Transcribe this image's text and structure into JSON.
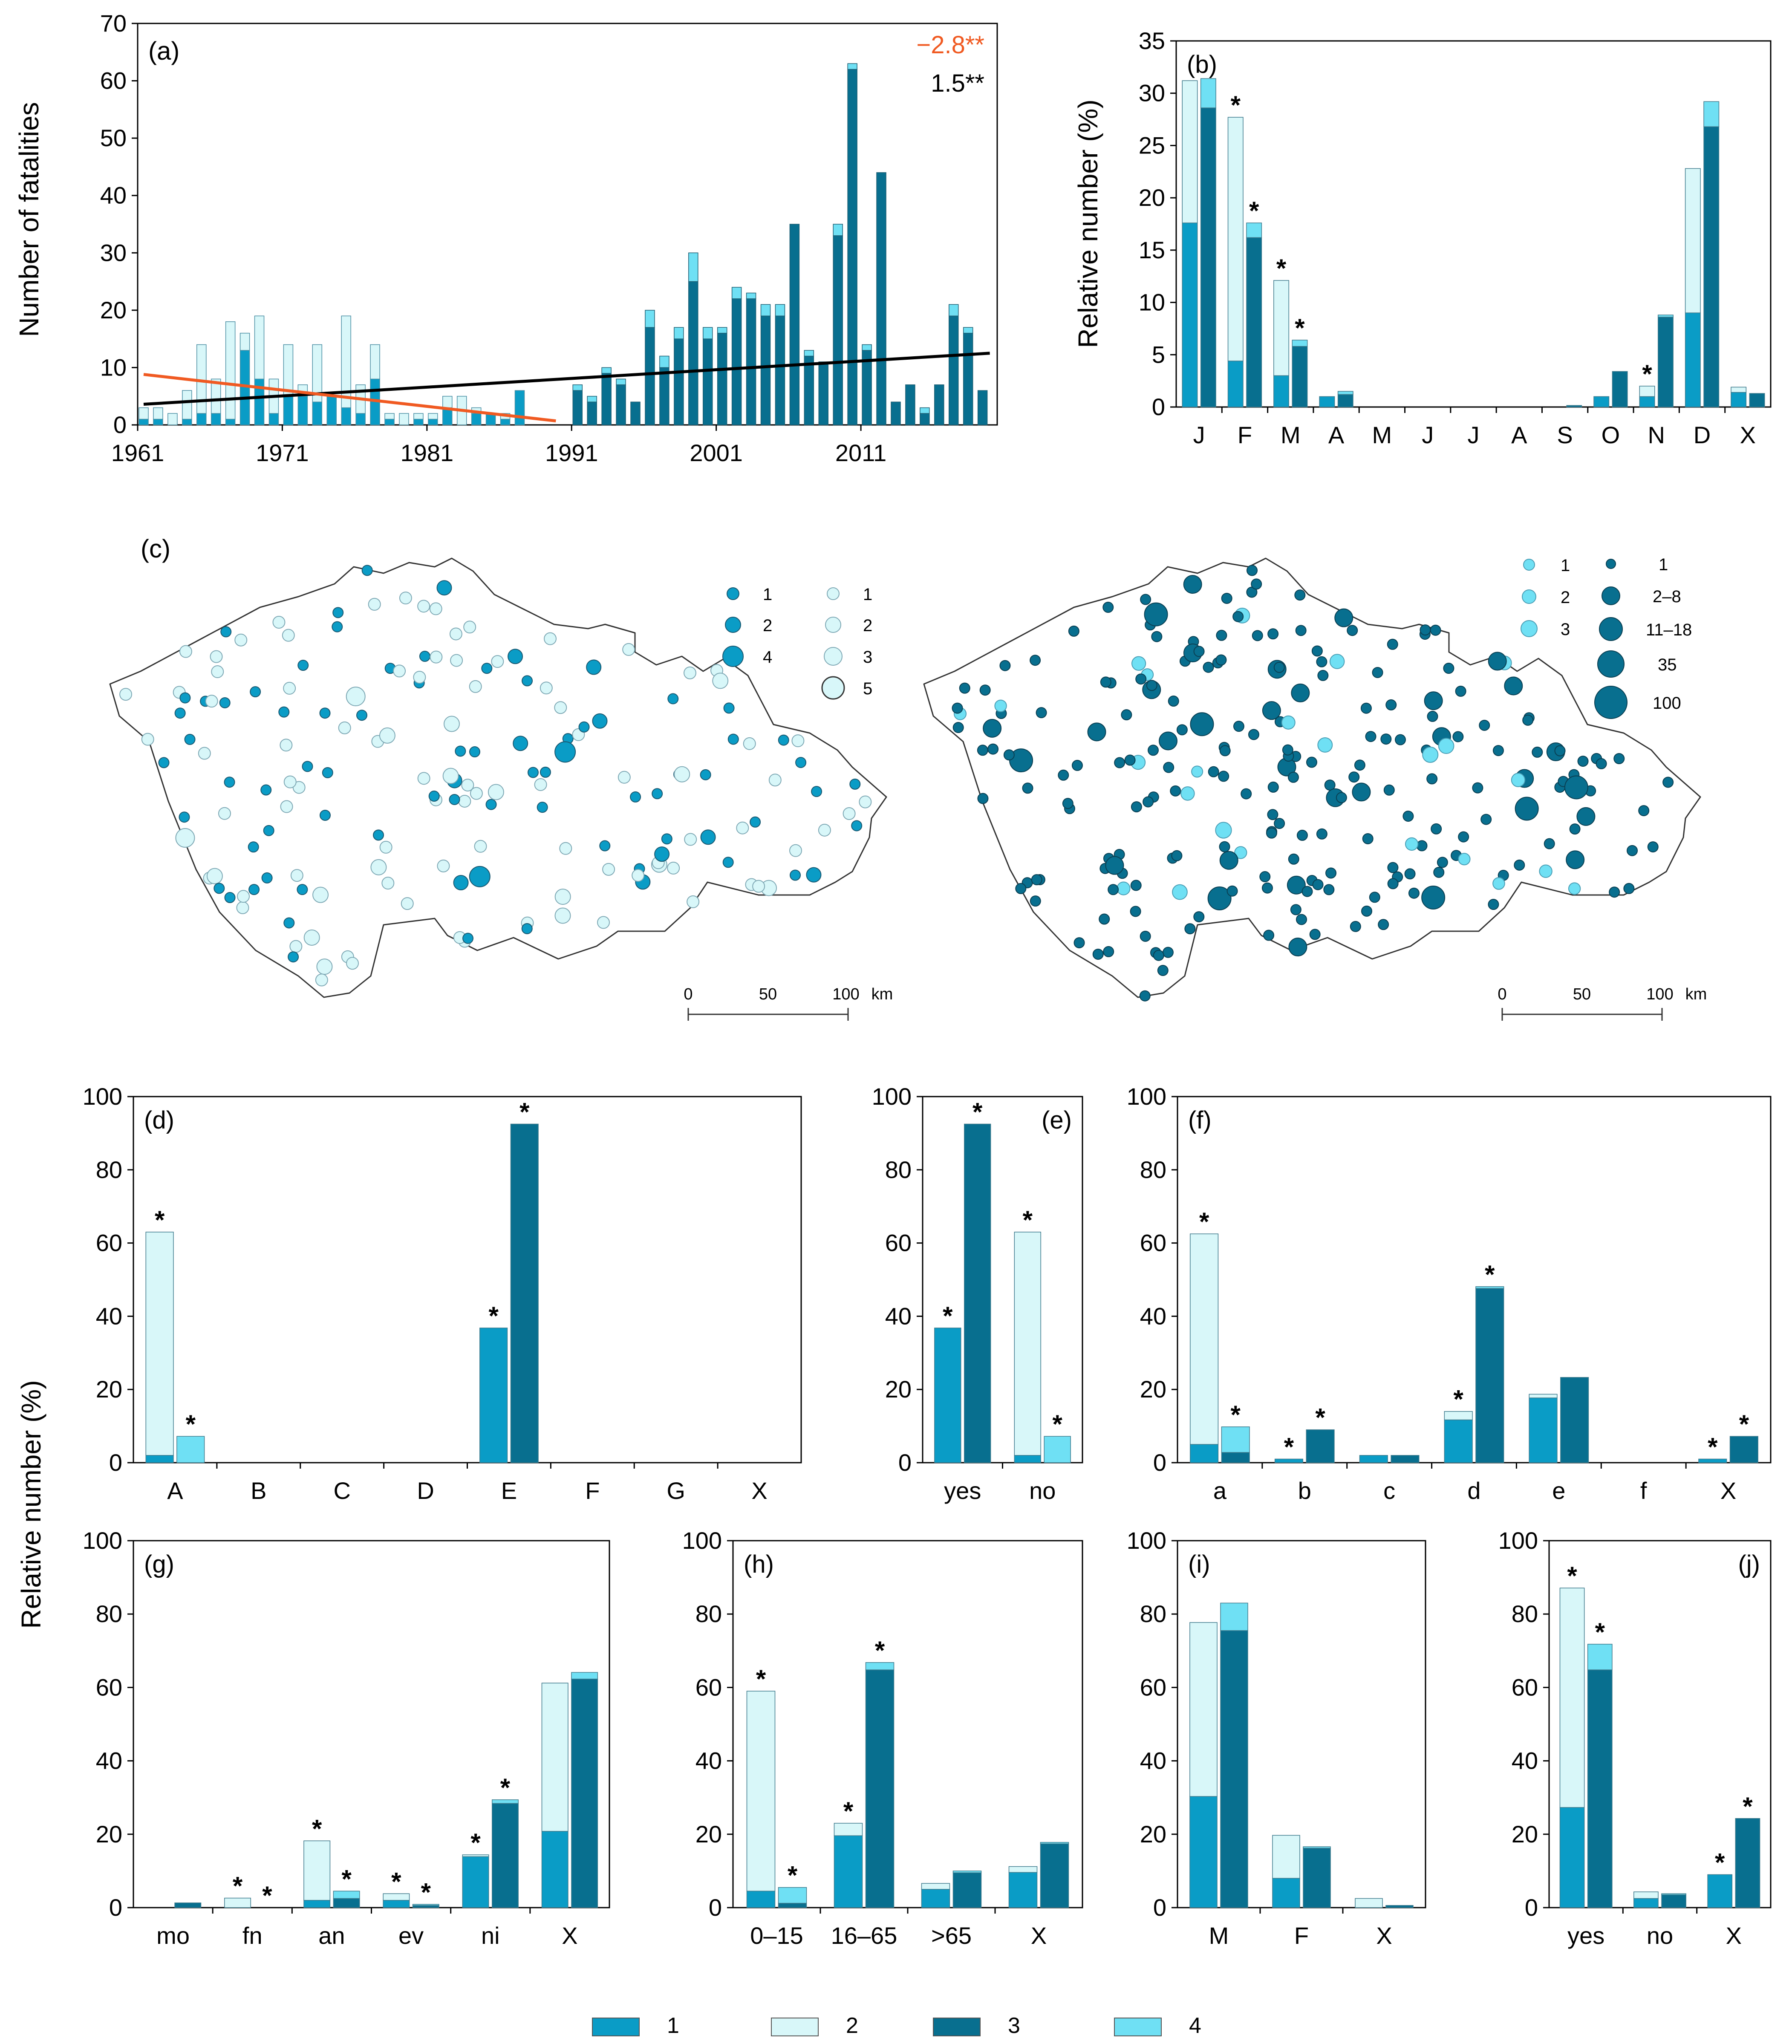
{
  "colors": {
    "c1": "#0a9cc6",
    "c2": "#d8f7f9",
    "c3": "#086f8f",
    "c4": "#6fe0f4",
    "trend_neg": "#f05a22",
    "trend_pos": "#000000",
    "axis": "#000000"
  },
  "y_axis_label_top": "Number of fatalities",
  "y_axis_label_b": "Relative number (%)",
  "y_axis_label_bottom": "Relative number (%)",
  "legend": [
    {
      "key": "c1",
      "label": "1"
    },
    {
      "key": "c2",
      "label": "2"
    },
    {
      "key": "c3",
      "label": "3"
    },
    {
      "key": "c4",
      "label": "4"
    }
  ],
  "maps": {
    "label": "(c)",
    "left_legend": {
      "dark": [
        "1",
        "2",
        "4"
      ],
      "light": [
        "1",
        "2",
        "3",
        "5"
      ]
    },
    "right_legend": {
      "light": [
        "1",
        "2",
        "3"
      ],
      "dark": [
        "1",
        "2–8",
        "11–18",
        "35",
        "100"
      ]
    },
    "scale": {
      "ticks": [
        "0",
        "50",
        "100"
      ],
      "unit": "km"
    }
  },
  "chart_data": [
    {
      "id": "a",
      "type": "bar",
      "stacked": true,
      "title": "(a)",
      "ylabel": "Number of fatalities",
      "ylim": [
        0,
        70
      ],
      "yticks": [
        "0",
        "10",
        "20",
        "30",
        "40",
        "50",
        "60",
        "70"
      ],
      "xticks": [
        "1961",
        "1971",
        "1981",
        "1991",
        "2001",
        "2011"
      ],
      "annotations": [
        {
          "text": "−2.8**",
          "color": "#f05a22"
        },
        {
          "text": "1.5**",
          "color": "#000000"
        }
      ],
      "years": [
        1961,
        1962,
        1963,
        1964,
        1965,
        1966,
        1967,
        1968,
        1969,
        1970,
        1971,
        1972,
        1973,
        1974,
        1975,
        1976,
        1977,
        1978,
        1979,
        1980,
        1981,
        1982,
        1983,
        1984,
        1985,
        1986,
        1987,
        1988,
        1989,
        1990,
        1991,
        1992,
        1993,
        1994,
        1995,
        1996,
        1997,
        1998,
        1999,
        2000,
        2001,
        2002,
        2003,
        2004,
        2005,
        2006,
        2007,
        2008,
        2009,
        2010,
        2011,
        2012,
        2013,
        2014,
        2015,
        2016,
        2017,
        2018,
        2019
      ],
      "period1_years": [
        1961,
        1962,
        1963,
        1964,
        1965,
        1966,
        1967,
        1968,
        1969,
        1970,
        1971,
        1972,
        1973,
        1974,
        1975,
        1976,
        1977,
        1978,
        1979,
        1980,
        1981,
        1982,
        1983,
        1984,
        1985,
        1986,
        1987,
        1988,
        1989,
        1990
      ],
      "period1_c1": [
        1,
        1,
        0,
        1,
        2,
        2,
        1,
        13,
        8,
        2,
        5,
        5,
        4,
        5,
        3,
        2,
        8,
        1,
        0,
        1,
        1,
        3,
        0,
        2,
        2,
        1,
        6,
        0,
        0,
        0
      ],
      "period1_c2": [
        2,
        2,
        2,
        5,
        12,
        6,
        17,
        3,
        11,
        6,
        9,
        2,
        10,
        0,
        16,
        5,
        6,
        1,
        2,
        1,
        1,
        2,
        5,
        1,
        0,
        1,
        0,
        0,
        0,
        0
      ],
      "period2_years": [
        1991,
        1992,
        1993,
        1994,
        1995,
        1996,
        1997,
        1998,
        1999,
        2000,
        2001,
        2002,
        2003,
        2004,
        2005,
        2006,
        2007,
        2008,
        2009,
        2010,
        2011,
        2012,
        2013,
        2014,
        2015,
        2016,
        2017,
        2018,
        2019
      ],
      "period2_c3": [
        6,
        4,
        9,
        7,
        4,
        17,
        10,
        15,
        25,
        15,
        16,
        22,
        22,
        19,
        19,
        35,
        12,
        11,
        33,
        62,
        13,
        44,
        4,
        7,
        2,
        7,
        19,
        16,
        6
      ],
      "period2_c4": [
        1,
        1,
        1,
        1,
        0,
        3,
        2,
        2,
        5,
        2,
        1,
        2,
        1,
        2,
        2,
        0,
        1,
        0,
        2,
        1,
        1,
        0,
        0,
        0,
        1,
        0,
        2,
        1,
        0
      ],
      "trend_neg": {
        "from": [
          1961,
          8.8
        ],
        "to": [
          1989.5,
          0.7
        ]
      },
      "trend_pos": {
        "from": [
          1961,
          3.6
        ],
        "to": [
          2019.5,
          12.5
        ]
      }
    },
    {
      "id": "b",
      "type": "bar",
      "stacked": true,
      "title": "(b)",
      "ylabel": "Relative number (%)",
      "ylim": [
        0,
        35
      ],
      "yticks": [
        "0",
        "5",
        "10",
        "15",
        "20",
        "25",
        "30",
        "35"
      ],
      "categories": [
        "J",
        "F",
        "M",
        "A",
        "M",
        "J",
        "J",
        "A",
        "S",
        "O",
        "N",
        "D",
        "X"
      ],
      "pairs": [
        {
          "A": [
            17.6,
            13.6,
            0
          ],
          "B": [
            28.6,
            2.8,
            1
          ],
          "starA": false,
          "starB": false
        },
        {
          "A": [
            4.4,
            23.3,
            0
          ],
          "B": [
            16.2,
            1.4,
            1
          ],
          "starA": true,
          "starB": true
        },
        {
          "A": [
            3.0,
            9.1,
            0
          ],
          "B": [
            5.8,
            0.6,
            1
          ],
          "starA": true,
          "starB": true
        },
        {
          "A": [
            1.0,
            0,
            0
          ],
          "B": [
            1.2,
            0.3,
            1
          ],
          "starA": false,
          "starB": false
        },
        {
          "A": [
            0,
            0,
            0
          ],
          "B": [
            0,
            0,
            1
          ],
          "starA": false,
          "starB": false
        },
        {
          "A": [
            0,
            0,
            0
          ],
          "B": [
            0,
            0,
            1
          ],
          "starA": false,
          "starB": false
        },
        {
          "A": [
            0,
            0,
            0
          ],
          "B": [
            0,
            0,
            1
          ],
          "starA": false,
          "starB": false
        },
        {
          "A": [
            0,
            0,
            0
          ],
          "B": [
            0,
            0,
            1
          ],
          "starA": false,
          "starB": false
        },
        {
          "A": [
            0,
            0,
            0
          ],
          "B": [
            0.15,
            0,
            1
          ],
          "starA": false,
          "starB": false
        },
        {
          "A": [
            1.0,
            0,
            0
          ],
          "B": [
            3.4,
            0,
            1
          ],
          "starA": false,
          "starB": false
        },
        {
          "A": [
            1.0,
            1.0,
            0
          ],
          "B": [
            8.6,
            0.2,
            1
          ],
          "starA": true,
          "starB": false
        },
        {
          "A": [
            9.0,
            13.8,
            0
          ],
          "B": [
            26.8,
            2.4,
            1
          ],
          "starA": false,
          "starB": false
        },
        {
          "A": [
            1.4,
            0.5,
            0
          ],
          "B": [
            1.3,
            0,
            1
          ],
          "starA": false,
          "starB": false
        }
      ]
    },
    {
      "id": "d",
      "type": "bar",
      "stacked": true,
      "title": "(d)",
      "ylim": [
        0,
        100
      ],
      "yticks": [
        "0",
        "20",
        "40",
        "60",
        "80",
        "100"
      ],
      "categories": [
        "A",
        "B",
        "C",
        "D",
        "E",
        "F",
        "G",
        "X"
      ],
      "pairs": [
        {
          "A": [
            2,
            61,
            0
          ],
          "B": [
            0,
            7.2,
            3
          ],
          "starA": true,
          "starB": true
        },
        {
          "A": [
            0,
            0,
            0
          ],
          "B": [
            0,
            0,
            1
          ],
          "starA": false,
          "starB": false
        },
        {
          "A": [
            0,
            0,
            0
          ],
          "B": [
            0,
            0,
            1
          ],
          "starA": false,
          "starB": false
        },
        {
          "A": [
            0,
            0,
            0
          ],
          "B": [
            0,
            0,
            1
          ],
          "starA": false,
          "starB": false
        },
        {
          "A": [
            36.8,
            0,
            0
          ],
          "B": [
            92.5,
            0,
            1
          ],
          "starA": true,
          "starB": true
        },
        {
          "A": [
            0,
            0,
            0
          ],
          "B": [
            0,
            0,
            1
          ],
          "starA": false,
          "starB": false
        },
        {
          "A": [
            0,
            0,
            0
          ],
          "B": [
            0,
            0,
            1
          ],
          "starA": false,
          "starB": false
        },
        {
          "A": [
            0,
            0,
            0
          ],
          "B": [
            0,
            0,
            1
          ],
          "starA": false,
          "starB": false
        }
      ]
    },
    {
      "id": "e",
      "type": "bar",
      "stacked": true,
      "title": "(e)",
      "ylim": [
        0,
        100
      ],
      "yticks": [
        "0",
        "20",
        "40",
        "60",
        "80",
        "100"
      ],
      "categories": [
        "yes",
        "no"
      ],
      "pairs": [
        {
          "A": [
            36.8,
            0,
            0
          ],
          "B": [
            92.5,
            0,
            1
          ],
          "starA": true,
          "starB": true
        },
        {
          "A": [
            2,
            61,
            0
          ],
          "B": [
            0,
            7.2,
            3
          ],
          "starA": true,
          "starB": true
        }
      ]
    },
    {
      "id": "f",
      "type": "bar",
      "stacked": true,
      "title": "(f)",
      "ylim": [
        0,
        100
      ],
      "yticks": [
        "0",
        "20",
        "40",
        "60",
        "80",
        "100"
      ],
      "categories": [
        "a",
        "b",
        "c",
        "d",
        "e",
        "f",
        "X"
      ],
      "pairs": [
        {
          "A": [
            5,
            57.5,
            0
          ],
          "B": [
            2.8,
            7,
            1
          ],
          "starA": true,
          "starB": true
        },
        {
          "A": [
            1,
            0,
            0
          ],
          "B": [
            9,
            0,
            1
          ],
          "starA": true,
          "starB": true
        },
        {
          "A": [
            2,
            0,
            0
          ],
          "B": [
            2,
            0,
            1
          ],
          "starA": false,
          "starB": false
        },
        {
          "A": [
            11.7,
            2.3,
            0
          ],
          "B": [
            47.6,
            0.5,
            1
          ],
          "starA": true,
          "starB": true
        },
        {
          "A": [
            17.7,
            1,
            0
          ],
          "B": [
            23.3,
            0,
            1
          ],
          "starA": false,
          "starB": false
        },
        {
          "A": [
            0,
            0,
            0
          ],
          "B": [
            0,
            0,
            1
          ],
          "starA": false,
          "starB": false
        },
        {
          "A": [
            1,
            0,
            0
          ],
          "B": [
            7.2,
            0,
            1
          ],
          "starA": true,
          "starB": true
        }
      ]
    },
    {
      "id": "g",
      "type": "bar",
      "stacked": true,
      "title": "(g)",
      "ylim": [
        0,
        100
      ],
      "yticks": [
        "0",
        "20",
        "40",
        "60",
        "80",
        "100"
      ],
      "categories": [
        "mo",
        "fn",
        "an",
        "ev",
        "ni",
        "X"
      ],
      "pairs": [
        {
          "A": [
            0,
            0,
            0
          ],
          "B": [
            1.3,
            0,
            1
          ],
          "starA": false,
          "starB": false
        },
        {
          "A": [
            0,
            2.6,
            0
          ],
          "B": [
            0,
            0,
            1
          ],
          "starA": true,
          "starB": true
        },
        {
          "A": [
            2,
            16.2,
            0
          ],
          "B": [
            2.5,
            2,
            1
          ],
          "starA": true,
          "starB": true
        },
        {
          "A": [
            2,
            1.8,
            0
          ],
          "B": [
            0.6,
            0.3,
            1
          ],
          "starA": true,
          "starB": true
        },
        {
          "A": [
            13.9,
            0.5,
            0
          ],
          "B": [
            28.4,
            1,
            1
          ],
          "starA": true,
          "starB": true
        },
        {
          "A": [
            20.8,
            40.4,
            0
          ],
          "B": [
            62.3,
            1.8,
            1
          ],
          "starA": false,
          "starB": false
        }
      ]
    },
    {
      "id": "h",
      "type": "bar",
      "stacked": true,
      "title": "(h)",
      "ylim": [
        0,
        100
      ],
      "yticks": [
        "0",
        "20",
        "40",
        "60",
        "80",
        "100"
      ],
      "categories": [
        "0–15",
        "16–65",
        ">65",
        "X"
      ],
      "pairs": [
        {
          "A": [
            4.5,
            54.5,
            0
          ],
          "B": [
            1.2,
            4.3,
            3
          ],
          "starA": true,
          "starB": true
        },
        {
          "A": [
            19.6,
            3.4,
            0
          ],
          "B": [
            64.8,
            2,
            1
          ],
          "starA": true,
          "starB": true
        },
        {
          "A": [
            5,
            1.6,
            0
          ],
          "B": [
            9.5,
            0.5,
            1
          ],
          "starA": false,
          "starB": false
        },
        {
          "A": [
            9.6,
            1.6,
            0
          ],
          "B": [
            17.4,
            0.4,
            1
          ],
          "starA": false,
          "starB": false
        }
      ]
    },
    {
      "id": "i",
      "type": "bar",
      "stacked": true,
      "title": "(i)",
      "ylim": [
        0,
        100
      ],
      "yticks": [
        "0",
        "20",
        "40",
        "60",
        "80",
        "100"
      ],
      "categories": [
        "M",
        "F",
        "X"
      ],
      "pairs": [
        {
          "A": [
            30.3,
            47.4,
            0
          ],
          "B": [
            75.5,
            7.5,
            1
          ],
          "starA": false,
          "starB": false
        },
        {
          "A": [
            8.0,
            11.7,
            0
          ],
          "B": [
            16.2,
            0.4,
            1
          ],
          "starA": false,
          "starB": false
        },
        {
          "A": [
            0,
            2.5,
            0
          ],
          "B": [
            0.6,
            0,
            1
          ],
          "starA": false,
          "starB": false
        }
      ]
    },
    {
      "id": "j",
      "type": "bar",
      "stacked": true,
      "title": "(j)",
      "ylim": [
        0,
        100
      ],
      "yticks": [
        "0",
        "20",
        "40",
        "60",
        "80",
        "100"
      ],
      "categories": [
        "yes",
        "no",
        "X"
      ],
      "pairs": [
        {
          "A": [
            27.3,
            59.8,
            0
          ],
          "B": [
            64.8,
            7,
            1
          ],
          "starA": true,
          "starB": true
        },
        {
          "A": [
            2.5,
            1.8,
            0
          ],
          "B": [
            3.5,
            0.3,
            1
          ],
          "starA": false,
          "starB": false
        },
        {
          "A": [
            9,
            0,
            0
          ],
          "B": [
            24.3,
            0,
            1
          ],
          "starA": true,
          "starB": true
        }
      ]
    }
  ]
}
